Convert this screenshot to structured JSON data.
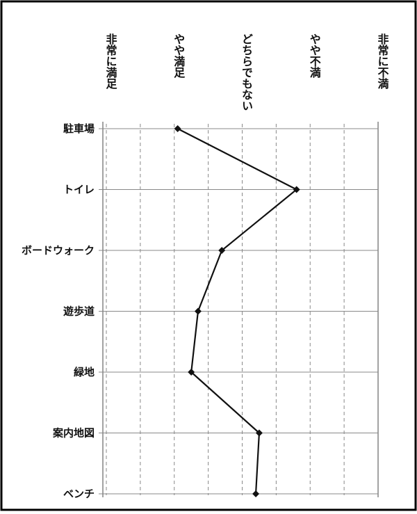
{
  "chart_data": {
    "type": "line",
    "orientation": "horizontal-value-axis",
    "title": "",
    "xlabel": "",
    "ylabel": "",
    "scale_levels": [
      "非常に満足",
      "やや満足",
      "どちらでもない",
      "やや不満",
      "非常に不満"
    ],
    "xlim": [
      1,
      5
    ],
    "grid": true,
    "legend": "none",
    "categories": [
      "駐車場",
      "トイレ",
      "ボードウォーク",
      "遊歩道",
      "緑地",
      "案内地図",
      "ベンチ"
    ],
    "series": [
      {
        "values": [
          2.05,
          3.8,
          2.7,
          2.35,
          2.25,
          3.25,
          3.2
        ]
      }
    ],
    "colors": {
      "line": "#111111",
      "grid": "#888888",
      "frame": "#000000"
    }
  }
}
